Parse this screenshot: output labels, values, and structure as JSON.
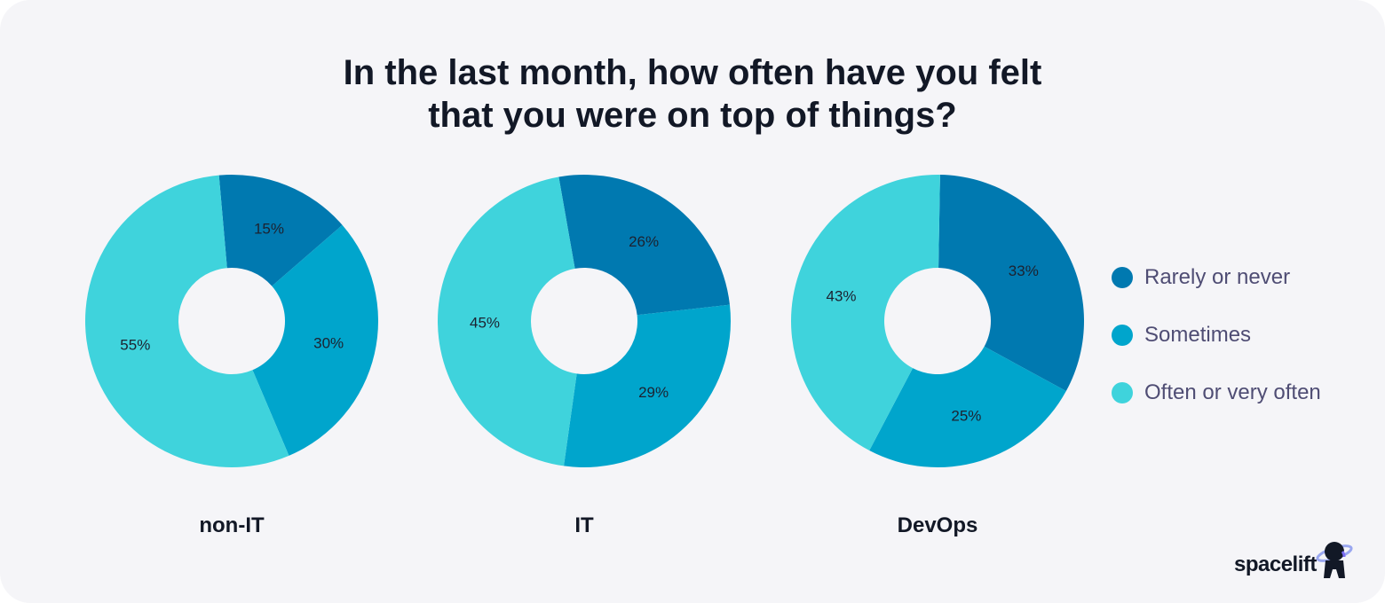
{
  "title": {
    "line1": "In the last month, how often have you felt",
    "line2": "that you were on top of things?"
  },
  "legend": [
    {
      "label": "Rarely or never",
      "color": "#0079b0"
    },
    {
      "label": "Sometimes",
      "color": "#00a5cc"
    },
    {
      "label": "Often or very often",
      "color": "#3fd3dc"
    }
  ],
  "brand": {
    "name": "spacelift",
    "icon": "astronaut-icon"
  },
  "chart_data": [
    {
      "type": "pie",
      "variant": "donut",
      "group": "non-IT",
      "categories": [
        "Rarely or never",
        "Sometimes",
        "Often or very often"
      ],
      "values": [
        15,
        30,
        55
      ],
      "labels": [
        "15%",
        "30%",
        "55%"
      ]
    },
    {
      "type": "pie",
      "variant": "donut",
      "group": "IT",
      "categories": [
        "Rarely or never",
        "Sometimes",
        "Often or very often"
      ],
      "values": [
        26,
        29,
        45
      ],
      "labels": [
        "26%",
        "29%",
        "45%"
      ]
    },
    {
      "type": "pie",
      "variant": "donut",
      "group": "DevOps",
      "categories": [
        "Rarely or never",
        "Sometimes",
        "Often or very often"
      ],
      "values": [
        33,
        25,
        43
      ],
      "labels": [
        "33%",
        "25%",
        "43%"
      ]
    }
  ]
}
